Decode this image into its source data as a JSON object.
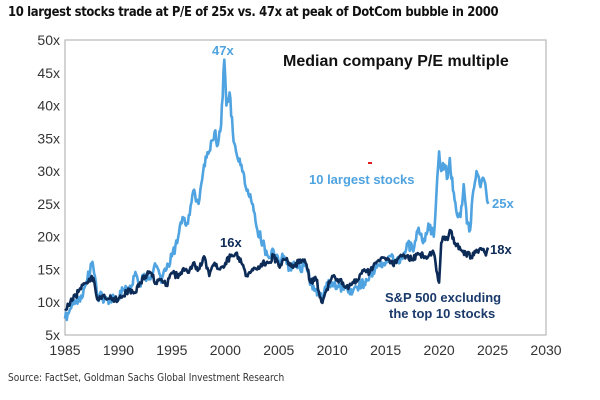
{
  "header": {
    "title": "10 largest stocks trade at P/E of 25x vs. 47x at peak of DotCom bubble in 2000"
  },
  "footer": {
    "source": "Source: FactSet, Goldman Sachs Global Investment Research"
  },
  "colors": {
    "largest": "#4fa3e0",
    "sp500_ex": "#0d2b57",
    "marker": "#e02020"
  },
  "chart_data": {
    "type": "line",
    "title": "Median company P/E multiple",
    "xlabel": "",
    "ylabel": "",
    "xlim": [
      1985,
      2030
    ],
    "ylim": [
      5,
      50
    ],
    "x_ticks": [
      "1985",
      "1990",
      "1995",
      "2000",
      "2005",
      "2010",
      "2015",
      "2020",
      "2025",
      "2030"
    ],
    "y_ticks": [
      "5x",
      "10x",
      "15x",
      "20x",
      "25x",
      "30x",
      "35x",
      "40x",
      "45x",
      "50x"
    ],
    "grid": false,
    "series": [
      {
        "name": "10 largest stocks",
        "label": "10 largest stocks",
        "color": "#4fa3e0",
        "x": [
          1985,
          1985.5,
          1986,
          1986.5,
          1987,
          1987.5,
          1987.8,
          1988,
          1989,
          1990,
          1990.5,
          1991,
          1991.5,
          1992,
          1992.5,
          1993,
          1993.5,
          1994,
          1994.5,
          1995,
          1995.5,
          1996,
          1996.5,
          1997,
          1997.5,
          1998,
          1998.5,
          1999,
          1999.3,
          1999.6,
          1999.9,
          2000.1,
          2000.4,
          2000.7,
          2001,
          2001.5,
          2002,
          2002.5,
          2003,
          2003.5,
          2004,
          2004.5,
          2005,
          2005.5,
          2006,
          2006.5,
          2007,
          2007.5,
          2008,
          2008.5,
          2009,
          2009.5,
          2010,
          2010.5,
          2011,
          2011.5,
          2012,
          2012.5,
          2013,
          2013.5,
          2014,
          2014.5,
          2015,
          2015.5,
          2016,
          2016.5,
          2017,
          2017.5,
          2018,
          2018.5,
          2019,
          2019.5,
          2020,
          2020.2,
          2020.5,
          2020.8,
          2021,
          2021.3,
          2021.6,
          2022,
          2022.3,
          2022.6,
          2022.9,
          2023.2,
          2023.5,
          2023.8,
          2024.1,
          2024.4,
          2024.6
        ],
        "values": [
          7.5,
          9,
          10,
          11,
          13,
          16,
          14,
          11,
          10.5,
          10.5,
          12,
          11.5,
          14,
          13,
          14,
          13.5,
          15.5,
          13,
          15,
          17,
          19,
          23,
          22,
          27,
          25,
          31,
          33,
          36,
          34,
          37,
          47,
          40,
          42,
          36,
          33,
          31,
          27,
          25,
          21,
          19,
          17,
          18,
          16,
          17,
          15,
          16,
          15,
          15.5,
          13,
          12,
          10.5,
          13,
          13,
          12.5,
          12,
          11.5,
          12,
          12.5,
          13,
          14,
          15,
          15.5,
          16,
          17,
          16,
          17,
          19,
          18,
          21,
          19,
          22,
          20,
          33,
          30,
          31,
          29,
          32,
          27,
          24,
          23,
          28,
          22,
          21,
          27,
          30,
          28,
          29,
          27,
          25
        ]
      },
      {
        "name": "S&P 500 excluding the top 10 stocks",
        "label": "S&P 500 excluding the top 10 stocks",
        "color": "#0d2b57",
        "x": [
          1985,
          1985.5,
          1986,
          1986.5,
          1987,
          1987.5,
          1987.8,
          1988,
          1988.5,
          1989,
          1990,
          1990.5,
          1991,
          1991.5,
          1992,
          1992.5,
          1993,
          1993.5,
          1994,
          1994.5,
          1995,
          1995.5,
          1996,
          1996.5,
          1997,
          1997.5,
          1998,
          1998.5,
          1999,
          1999.5,
          2000,
          2000.5,
          2001,
          2001.5,
          2002,
          2002.5,
          2003,
          2003.5,
          2004,
          2004.5,
          2005,
          2005.5,
          2006,
          2006.5,
          2007,
          2007.5,
          2008,
          2008.5,
          2009,
          2009.5,
          2010,
          2010.5,
          2011,
          2011.5,
          2012,
          2012.5,
          2013,
          2013.5,
          2014,
          2014.5,
          2015,
          2015.5,
          2016,
          2016.5,
          2017,
          2017.5,
          2018,
          2018.5,
          2019,
          2019.5,
          2020,
          2020.2,
          2020.5,
          2020.8,
          2021,
          2021.5,
          2022,
          2022.5,
          2023,
          2023.5,
          2024,
          2024.3,
          2024.6
        ],
        "values": [
          9,
          10,
          11,
          12,
          13,
          14,
          12.5,
          10.5,
          11,
          10.5,
          10.5,
          11,
          12,
          11.5,
          13,
          14,
          14.5,
          13,
          13.5,
          12.5,
          14.5,
          14,
          15,
          14.5,
          16,
          15,
          17,
          14,
          16,
          15,
          16,
          17,
          17.5,
          16,
          14,
          15,
          15,
          16,
          16,
          17,
          15.5,
          16.5,
          16,
          15.5,
          16.5,
          16,
          13,
          13.5,
          10,
          12,
          14,
          13.5,
          13,
          12,
          13,
          13.5,
          15,
          14.5,
          16,
          16.5,
          16.5,
          16,
          16,
          17,
          17,
          16.5,
          17.5,
          17,
          17,
          17.5,
          13,
          19,
          20,
          19.5,
          21,
          19,
          18,
          17.5,
          17,
          18,
          18,
          17.5,
          18
        ]
      }
    ],
    "annotations": [
      {
        "text": "47x",
        "series": "10 largest stocks",
        "at_year": 2000
      },
      {
        "text": "16x",
        "series": "S&P 500 excluding the top 10 stocks",
        "at_year": 2000
      },
      {
        "text": "25x",
        "series": "10 largest stocks",
        "at_year": 2024.6
      },
      {
        "text": "18x",
        "series": "S&P 500 excluding the top 10 stocks",
        "at_year": 2024.6
      }
    ],
    "series_labels": {
      "largest": "10 largest stocks",
      "sp500_ex_line1": "S&P 500 excluding",
      "sp500_ex_line2": "the top 10 stocks"
    },
    "legend": "inline-labels"
  }
}
